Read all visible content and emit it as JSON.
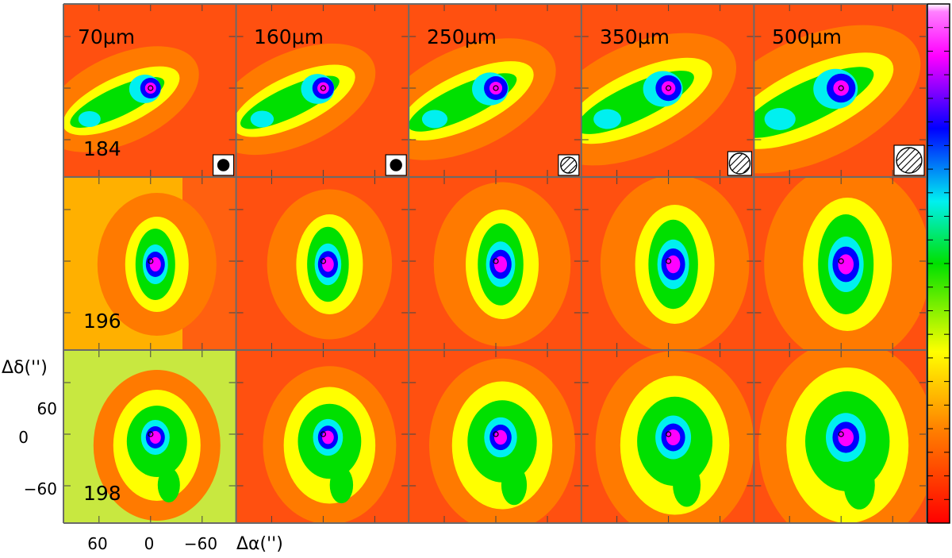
{
  "wavelengths": [
    "70μm",
    "160μm",
    "250μm",
    "350μm",
    "500μm"
  ],
  "sources": [
    "184",
    "196",
    "198"
  ],
  "y_axis": {
    "label": "Δδ('')",
    "ticks": [
      "60",
      "0",
      "−60"
    ]
  },
  "x_axis": {
    "label": "Δα('')",
    "ticks": [
      "60",
      "0",
      "−60"
    ]
  },
  "beam_insets": [
    "filled",
    "filled",
    "hatched",
    "hatched",
    "hatched"
  ],
  "colormap": [
    "#ff0000",
    "#ff7a00",
    "#ffff00",
    "#00e000",
    "#00f0f0",
    "#0000ff",
    "#ff00ff",
    "#ffffff"
  ]
}
